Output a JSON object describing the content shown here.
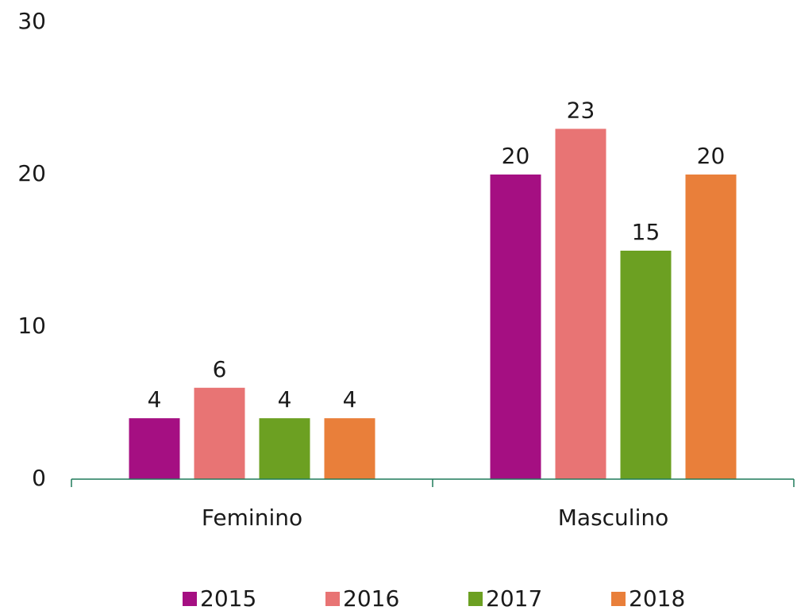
{
  "chart_data": {
    "type": "bar",
    "categories": [
      "Feminino",
      "Masculino"
    ],
    "series": [
      {
        "name": "2015",
        "color": "#a50f82",
        "values": [
          4,
          20
        ]
      },
      {
        "name": "2016",
        "color": "#e87474",
        "values": [
          6,
          23
        ]
      },
      {
        "name": "2017",
        "color": "#6ca022",
        "values": [
          4,
          15
        ]
      },
      {
        "name": "2018",
        "color": "#e97f3a",
        "values": [
          4,
          20
        ]
      }
    ],
    "ylim": [
      0,
      30
    ],
    "yticks": [
      0,
      10,
      20,
      30
    ],
    "grid": false,
    "legend": "bottom"
  }
}
